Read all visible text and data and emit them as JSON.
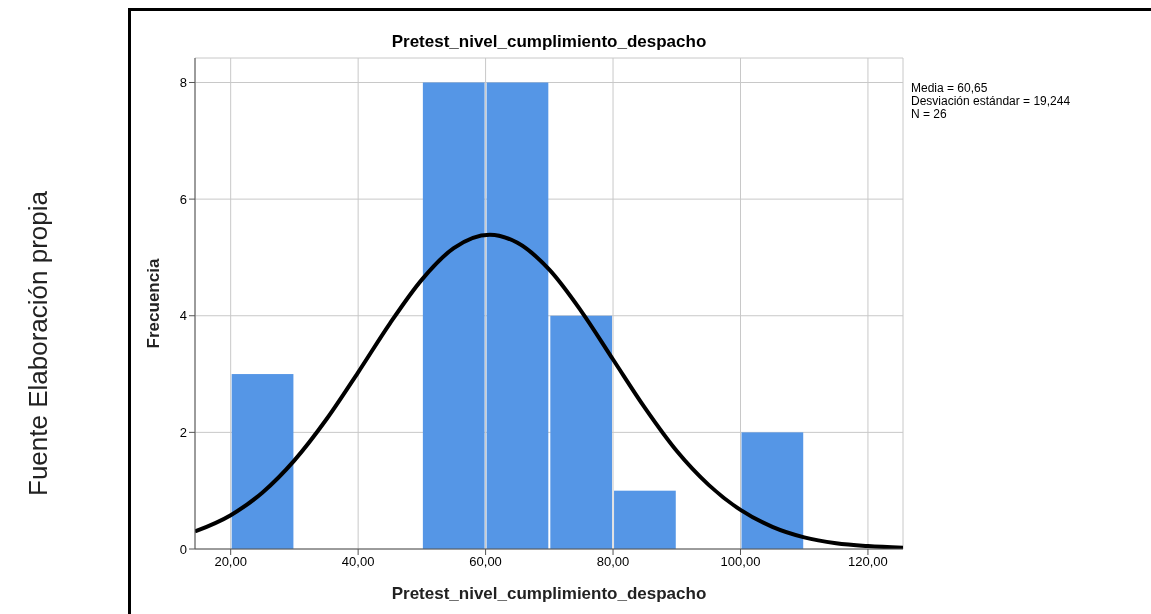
{
  "chart_data": {
    "type": "histogram",
    "title": "Pretest_nivel_cumplimiento_despacho",
    "xlabel": "Pretest_nivel_cumplimiento_despacho",
    "ylabel": "Frecuencia",
    "bins": [
      20,
      30,
      40,
      50,
      60,
      70,
      80,
      90,
      100,
      110
    ],
    "values": [
      3,
      0,
      0,
      8,
      8,
      4,
      1,
      0,
      2
    ],
    "color": "#5596e6",
    "series": [
      {
        "type": "line",
        "color": "#000000",
        "x": [
          14.4,
          20,
          25,
          30,
          35,
          40,
          45,
          50,
          55,
          60.65,
          65,
          70,
          75,
          80,
          85,
          90,
          95,
          100,
          105,
          110,
          115,
          120,
          125.5
        ],
        "values": [
          0.3,
          0.58,
          0.97,
          1.52,
          2.22,
          3.03,
          3.87,
          4.62,
          5.16,
          5.39,
          5.25,
          4.79,
          4.08,
          3.25,
          2.42,
          1.68,
          1.1,
          0.67,
          0.38,
          0.2,
          0.1,
          0.05,
          0.02
        ]
      }
    ],
    "xlim": [
      14.4,
      125.5
    ],
    "xticks": [
      {
        "value": 20,
        "label": "20,00"
      },
      {
        "value": 40,
        "label": "40,00"
      },
      {
        "value": 60,
        "label": "60,00"
      },
      {
        "value": 80,
        "label": "80,00"
      },
      {
        "value": 100,
        "label": "100,00"
      },
      {
        "value": 120,
        "label": "120,00"
      }
    ],
    "ylim": [
      0,
      8.42
    ],
    "yticks": [
      0,
      2,
      4,
      6,
      8
    ],
    "grid": true,
    "marker": "none",
    "line_style": "solid",
    "annotations": [
      "Media = 60,65",
      "Desviación estándar = 19,244",
      "N = 26",
      "Fuente Elaboración propia"
    ]
  }
}
